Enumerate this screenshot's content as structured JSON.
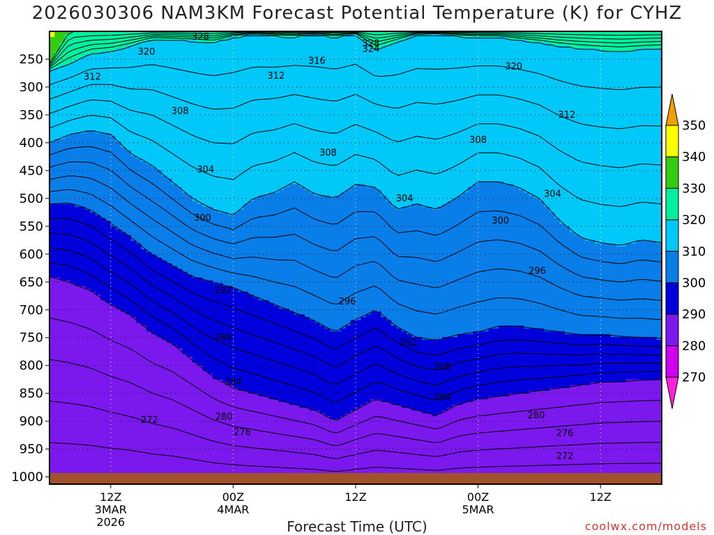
{
  "chart_data": {
    "type": "contour",
    "title": "2026030306 NAM3KM Forecast Potential Temperature (K) for CYHZ",
    "xlabel": "Forecast Time (UTC)",
    "ylabel": "",
    "credit": "coolwx.com/models",
    "x_ticks": [
      {
        "hours": 6,
        "label": "12Z",
        "sub1": "3MAR",
        "sub2": "2026"
      },
      {
        "hours": 18,
        "label": "00Z",
        "sub1": "4MAR",
        "sub2": ""
      },
      {
        "hours": 30,
        "label": "12Z",
        "sub1": "",
        "sub2": ""
      },
      {
        "hours": 42,
        "label": "00Z",
        "sub1": "5MAR",
        "sub2": ""
      },
      {
        "hours": 54,
        "label": "12Z",
        "sub1": "",
        "sub2": ""
      }
    ],
    "xlim": [
      0,
      60
    ],
    "y_ticks": [
      250,
      300,
      350,
      400,
      450,
      500,
      550,
      600,
      650,
      700,
      750,
      800,
      850,
      900,
      950,
      1000
    ],
    "ylim": [
      200,
      1013
    ],
    "colorbar": {
      "levels": [
        350,
        340,
        330,
        320,
        310,
        300,
        290,
        280,
        270
      ],
      "colors": [
        "#f0a000",
        "#ffff00",
        "#33cc11",
        "#00f0a0",
        "#00c8f8",
        "#0a7ee8",
        "#0000dd",
        "#7a18ee",
        "#cc00ee",
        "#ff22dd"
      ]
    },
    "fill_levels": [
      270,
      280,
      290,
      300,
      310,
      320,
      330,
      340
    ],
    "isentropes": [
      {
        "theta": 330,
        "p": [
          258,
          200,
          200,
          200,
          200,
          200,
          200,
          200,
          200,
          200,
          200,
          200,
          200,
          200,
          200,
          200,
          200,
          200,
          200,
          200,
          200,
          200,
          200,
          200,
          200,
          200,
          200,
          200,
          200,
          200,
          200
        ]
      },
      {
        "theta": 320,
        "p": [
          270,
          258,
          240,
          236,
          226,
          214,
          215,
          217,
          220,
          210,
          205,
          208,
          209,
          206,
          210,
          205,
          232,
          218,
          206,
          205,
          208,
          210,
          210,
          215,
          220,
          226,
          230,
          233,
          235,
          232,
          230
        ]
      },
      {
        "theta": 310,
        "p": [
          400,
          385,
          378,
          385,
          420,
          440,
          470,
          500,
          520,
          530,
          500,
          490,
          470,
          492,
          500,
          475,
          480,
          520,
          510,
          520,
          498,
          470,
          470,
          480,
          500,
          540,
          570,
          580,
          585,
          575,
          580
        ]
      },
      {
        "theta": 300,
        "p": [
          510,
          508,
          520,
          545,
          570,
          600,
          620,
          640,
          650,
          660,
          675,
          690,
          705,
          720,
          740,
          718,
          700,
          730,
          750,
          755,
          745,
          740,
          730,
          730,
          735,
          740,
          745,
          745,
          748,
          750,
          752
        ]
      },
      {
        "theta": 290,
        "p": [
          640,
          650,
          665,
          690,
          710,
          740,
          760,
          790,
          820,
          840,
          850,
          860,
          870,
          880,
          900,
          880,
          860,
          870,
          880,
          890,
          870,
          860,
          855,
          850,
          845,
          840,
          835,
          830,
          828,
          826,
          825
        ]
      },
      {
        "theta": 280,
        "p": [
          1013,
          1013,
          1013,
          1013,
          1013,
          1013,
          1013,
          1013,
          1013,
          1013,
          1013,
          1013,
          1013,
          1013,
          1013,
          1013,
          1013,
          1013,
          1013,
          1013,
          1013,
          1013,
          1013,
          1013,
          1013,
          1013,
          1013,
          1013,
          1013,
          1013,
          1013
        ]
      }
    ],
    "contour_labels": [
      {
        "hours": 14.8,
        "p": 210,
        "text": "328"
      },
      {
        "hours": 31.5,
        "p": 222,
        "text": "328"
      },
      {
        "hours": 31.5,
        "p": 232,
        "text": "324"
      },
      {
        "hours": 9.5,
        "p": 237,
        "text": "320"
      },
      {
        "hours": 45.5,
        "p": 263,
        "text": "320"
      },
      {
        "hours": 26.2,
        "p": 253,
        "text": "316"
      },
      {
        "hours": 4.2,
        "p": 282,
        "text": "312"
      },
      {
        "hours": 22.2,
        "p": 280,
        "text": "312"
      },
      {
        "hours": 50.7,
        "p": 350,
        "text": "312"
      },
      {
        "hours": 12.8,
        "p": 343,
        "text": "308"
      },
      {
        "hours": 27.3,
        "p": 418,
        "text": "308"
      },
      {
        "hours": 42.0,
        "p": 395,
        "text": "308"
      },
      {
        "hours": 15.3,
        "p": 448,
        "text": "304"
      },
      {
        "hours": 34.8,
        "p": 500,
        "text": "304"
      },
      {
        "hours": 49.3,
        "p": 492,
        "text": "304"
      },
      {
        "hours": 15.0,
        "p": 535,
        "text": "300"
      },
      {
        "hours": 44.2,
        "p": 540,
        "text": "300"
      },
      {
        "hours": 47.8,
        "p": 630,
        "text": "296"
      },
      {
        "hours": 29.2,
        "p": 685,
        "text": "296"
      },
      {
        "hours": 17.0,
        "p": 665,
        "text": "292"
      },
      {
        "hours": 35.2,
        "p": 760,
        "text": "292"
      },
      {
        "hours": 17.0,
        "p": 750,
        "text": "288"
      },
      {
        "hours": 38.5,
        "p": 803,
        "text": "288"
      },
      {
        "hours": 18.0,
        "p": 830,
        "text": "284"
      },
      {
        "hours": 38.5,
        "p": 858,
        "text": "284"
      },
      {
        "hours": 17.1,
        "p": 892,
        "text": "280"
      },
      {
        "hours": 47.7,
        "p": 890,
        "text": "280"
      },
      {
        "hours": 9.8,
        "p": 898,
        "text": "272"
      },
      {
        "hours": 18.9,
        "p": 920,
        "text": "276"
      },
      {
        "hours": 50.5,
        "p": 922,
        "text": "276"
      },
      {
        "hours": 50.5,
        "p": 963,
        "text": "272"
      }
    ]
  }
}
